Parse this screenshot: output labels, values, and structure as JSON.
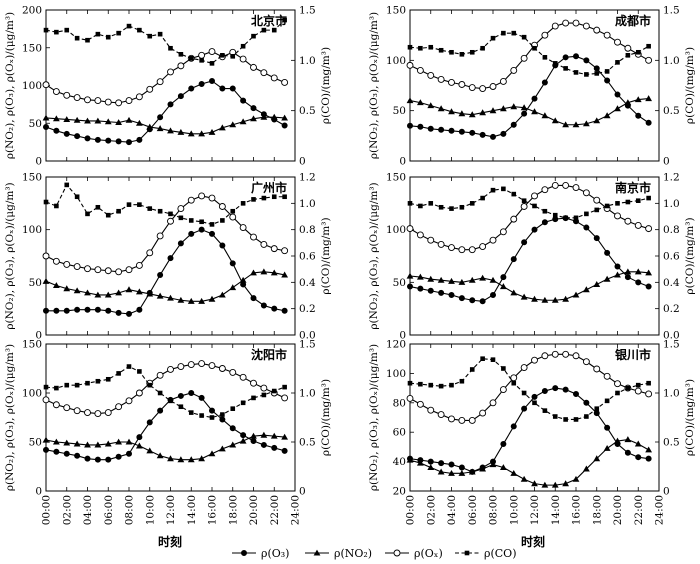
{
  "figure": {
    "xlabel": "时刻",
    "x_ticks": [
      "00:00",
      "02:00",
      "04:00",
      "06:00",
      "08:00",
      "10:00",
      "12:00",
      "14:00",
      "16:00",
      "18:00",
      "20:00",
      "22:00",
      "24:00"
    ],
    "left_axis_label": "ρ(NO₂), ρ(O₃), ρ(Oₓ)/(μg/m³)",
    "right_axis_label": "ρ(CO)/(mg/m³)"
  },
  "legend": [
    {
      "label": "ρ(O₃)",
      "marker": "filled-circle",
      "line": "solid"
    },
    {
      "label": "ρ(NO₂)",
      "marker": "filled-triangle",
      "line": "solid"
    },
    {
      "label": "ρ(Oₓ)",
      "marker": "open-circle",
      "line": "solid"
    },
    {
      "label": "ρ(CO)",
      "marker": "filled-square",
      "line": "dashed"
    }
  ],
  "chart_data": [
    {
      "type": "line",
      "title": "北京市",
      "x": [
        0,
        1,
        2,
        3,
        4,
        5,
        6,
        7,
        8,
        9,
        10,
        11,
        12,
        13,
        14,
        15,
        16,
        17,
        18,
        19,
        20,
        21,
        22,
        23
      ],
      "ylim": [
        0,
        200
      ],
      "yticks": [
        0,
        50,
        100,
        150,
        200
      ],
      "y2lim": [
        0,
        1.5
      ],
      "y2ticks": [
        0,
        0.5,
        1.0,
        1.5
      ],
      "series": [
        {
          "name": "ρ(O₃)",
          "axis": "left",
          "values": [
            45,
            40,
            36,
            33,
            30,
            28,
            27,
            26,
            25,
            28,
            42,
            58,
            75,
            86,
            96,
            102,
            106,
            96,
            96,
            80,
            70,
            62,
            55,
            47
          ]
        },
        {
          "name": "ρ(NO₂)",
          "axis": "left",
          "values": [
            57,
            56,
            55,
            54,
            53,
            53,
            52,
            51,
            54,
            50,
            45,
            43,
            40,
            38,
            36,
            36,
            38,
            44,
            48,
            52,
            56,
            58,
            58,
            57
          ]
        },
        {
          "name": "ρ(Oₓ)",
          "axis": "left",
          "values": [
            101,
            92,
            87,
            84,
            81,
            80,
            78,
            77,
            80,
            85,
            95,
            105,
            118,
            126,
            136,
            140,
            145,
            138,
            144,
            135,
            124,
            117,
            110,
            104
          ]
        },
        {
          "name": "ρ(CO)",
          "axis": "right",
          "values": [
            1.3,
            1.28,
            1.3,
            1.22,
            1.2,
            1.26,
            1.23,
            1.27,
            1.34,
            1.3,
            1.24,
            1.26,
            1.12,
            1.06,
            1.02,
            1.0,
            0.97,
            1.05,
            1.04,
            1.14,
            1.24,
            1.3,
            1.3,
            1.4
          ]
        }
      ]
    },
    {
      "type": "line",
      "title": "成都市",
      "x": [
        0,
        1,
        2,
        3,
        4,
        5,
        6,
        7,
        8,
        9,
        10,
        11,
        12,
        13,
        14,
        15,
        16,
        17,
        18,
        19,
        20,
        21,
        22,
        23
      ],
      "ylim": [
        0,
        150
      ],
      "yticks": [
        0,
        50,
        100,
        150
      ],
      "y2lim": [
        0,
        1.5
      ],
      "y2ticks": [
        0,
        0.5,
        1.0,
        1.5
      ],
      "series": [
        {
          "name": "ρ(O₃)",
          "axis": "left",
          "values": [
            35,
            34,
            32,
            31,
            30,
            29,
            28,
            26,
            24,
            27,
            36,
            47,
            62,
            78,
            95,
            103,
            104,
            100,
            92,
            80,
            66,
            55,
            45,
            38
          ]
        },
        {
          "name": "ρ(NO₂)",
          "axis": "left",
          "values": [
            60,
            58,
            55,
            52,
            49,
            47,
            46,
            48,
            50,
            52,
            54,
            53,
            49,
            45,
            40,
            36,
            36,
            37,
            40,
            45,
            52,
            58,
            61,
            62
          ]
        },
        {
          "name": "ρ(Oₓ)",
          "axis": "left",
          "values": [
            95,
            90,
            85,
            81,
            78,
            76,
            73,
            72,
            74,
            79,
            90,
            102,
            115,
            125,
            134,
            137,
            137,
            134,
            130,
            125,
            118,
            112,
            106,
            100
          ]
        },
        {
          "name": "ρ(CO)",
          "axis": "right",
          "values": [
            1.13,
            1.12,
            1.13,
            1.1,
            1.08,
            1.06,
            1.08,
            1.12,
            1.22,
            1.27,
            1.27,
            1.23,
            1.12,
            1.03,
            0.97,
            0.92,
            0.88,
            0.86,
            0.87,
            0.89,
            0.98,
            1.05,
            1.08,
            1.14
          ]
        }
      ]
    },
    {
      "type": "line",
      "title": "广州市",
      "x": [
        0,
        1,
        2,
        3,
        4,
        5,
        6,
        7,
        8,
        9,
        10,
        11,
        12,
        13,
        14,
        15,
        16,
        17,
        18,
        19,
        20,
        21,
        22,
        23
      ],
      "ylim": [
        0,
        150
      ],
      "yticks": [
        0,
        50,
        100,
        150
      ],
      "y2lim": [
        0,
        1.2
      ],
      "y2ticks": [
        0,
        0.2,
        0.4,
        0.6,
        0.8,
        1.0,
        1.2
      ],
      "series": [
        {
          "name": "ρ(O₃)",
          "axis": "left",
          "values": [
            23,
            23,
            23,
            24,
            24,
            24,
            23,
            21,
            20,
            24,
            40,
            57,
            73,
            87,
            96,
            100,
            96,
            85,
            68,
            48,
            35,
            28,
            25,
            23
          ]
        },
        {
          "name": "ρ(NO₂)",
          "axis": "left",
          "values": [
            51,
            47,
            44,
            42,
            40,
            38,
            38,
            40,
            43,
            41,
            39,
            37,
            35,
            33,
            32,
            32,
            34,
            38,
            45,
            52,
            59,
            60,
            59,
            57
          ]
        },
        {
          "name": "ρ(Oₓ)",
          "axis": "left",
          "values": [
            75,
            70,
            67,
            65,
            63,
            62,
            61,
            60,
            62,
            66,
            78,
            94,
            108,
            120,
            128,
            132,
            130,
            122,
            112,
            102,
            93,
            86,
            82,
            80
          ]
        },
        {
          "name": "ρ(CO)",
          "axis": "right",
          "values": [
            1.01,
            0.98,
            1.14,
            1.05,
            0.92,
            0.97,
            0.91,
            0.94,
            0.99,
            0.99,
            0.96,
            0.94,
            0.92,
            0.89,
            0.87,
            0.86,
            0.84,
            0.87,
            0.94,
            1.0,
            1.03,
            1.04,
            1.05,
            1.05
          ]
        }
      ]
    },
    {
      "type": "line",
      "title": "南京市",
      "x": [
        0,
        1,
        2,
        3,
        4,
        5,
        6,
        7,
        8,
        9,
        10,
        11,
        12,
        13,
        14,
        15,
        16,
        17,
        18,
        19,
        20,
        21,
        22,
        23
      ],
      "ylim": [
        0,
        150
      ],
      "yticks": [
        0,
        50,
        100,
        150
      ],
      "y2lim": [
        0,
        1.2
      ],
      "y2ticks": [
        0,
        0.2,
        0.4,
        0.6,
        0.8,
        1.0,
        1.2
      ],
      "series": [
        {
          "name": "ρ(O₃)",
          "axis": "left",
          "values": [
            46,
            44,
            42,
            40,
            38,
            35,
            33,
            32,
            38,
            55,
            72,
            88,
            100,
            107,
            110,
            111,
            108,
            102,
            92,
            78,
            65,
            55,
            50,
            46
          ]
        },
        {
          "name": "ρ(NO₂)",
          "axis": "left",
          "values": [
            56,
            55,
            53,
            52,
            51,
            50,
            52,
            54,
            52,
            46,
            40,
            36,
            34,
            33,
            33,
            34,
            38,
            43,
            48,
            53,
            57,
            60,
            60,
            59
          ]
        },
        {
          "name": "ρ(Oₓ)",
          "axis": "left",
          "values": [
            101,
            95,
            90,
            86,
            83,
            81,
            81,
            84,
            90,
            98,
            110,
            122,
            132,
            138,
            142,
            142,
            140,
            135,
            128,
            120,
            113,
            108,
            104,
            101
          ]
        },
        {
          "name": "ρ(CO)",
          "axis": "right",
          "values": [
            1.0,
            0.98,
            1.0,
            0.97,
            0.96,
            0.97,
            1.0,
            1.04,
            1.1,
            1.11,
            1.07,
            1.02,
            0.98,
            0.94,
            0.91,
            0.89,
            0.89,
            0.92,
            0.95,
            0.98,
            1.0,
            1.01,
            1.02,
            1.04
          ]
        }
      ]
    },
    {
      "type": "line",
      "title": "沈阳市",
      "x": [
        0,
        1,
        2,
        3,
        4,
        5,
        6,
        7,
        8,
        9,
        10,
        11,
        12,
        13,
        14,
        15,
        16,
        17,
        18,
        19,
        20,
        21,
        22,
        23
      ],
      "ylim": [
        0,
        150
      ],
      "yticks": [
        0,
        50,
        100,
        150
      ],
      "y2lim": [
        0,
        1.5
      ],
      "y2ticks": [
        0,
        0.5,
        1.0,
        1.5
      ],
      "series": [
        {
          "name": "ρ(O₃)",
          "axis": "left",
          "values": [
            42,
            40,
            38,
            36,
            33,
            32,
            32,
            35,
            38,
            55,
            70,
            82,
            93,
            97,
            100,
            95,
            82,
            73,
            64,
            57,
            51,
            47,
            44,
            41
          ]
        },
        {
          "name": "ρ(NO₂)",
          "axis": "left",
          "values": [
            52,
            50,
            49,
            48,
            47,
            47,
            48,
            50,
            50,
            46,
            41,
            36,
            33,
            32,
            32,
            33,
            38,
            43,
            47,
            51,
            56,
            57,
            56,
            55
          ]
        },
        {
          "name": "ρ(Oₓ)",
          "axis": "left",
          "values": [
            93,
            88,
            85,
            82,
            80,
            79,
            80,
            86,
            92,
            100,
            110,
            118,
            124,
            127,
            129,
            130,
            128,
            125,
            121,
            116,
            110,
            105,
            100,
            95
          ]
        },
        {
          "name": "ρ(CO)",
          "axis": "right",
          "values": [
            1.06,
            1.05,
            1.08,
            1.08,
            1.1,
            1.12,
            1.14,
            1.2,
            1.27,
            1.22,
            1.08,
            1.0,
            0.92,
            0.86,
            0.8,
            0.77,
            0.75,
            0.78,
            0.84,
            0.9,
            0.95,
            0.98,
            1.02,
            1.06
          ]
        }
      ]
    },
    {
      "type": "line",
      "title": "银川市",
      "x": [
        0,
        1,
        2,
        3,
        4,
        5,
        6,
        7,
        8,
        9,
        10,
        11,
        12,
        13,
        14,
        15,
        16,
        17,
        18,
        19,
        20,
        21,
        22,
        23
      ],
      "ylim": [
        20,
        120
      ],
      "yticks": [
        20,
        40,
        60,
        80,
        100,
        120
      ],
      "y2lim": [
        0,
        1.5
      ],
      "y2ticks": [
        0,
        0.5,
        1.0,
        1.5
      ],
      "series": [
        {
          "name": "ρ(O₃)",
          "axis": "left",
          "values": [
            42,
            41,
            40,
            39,
            38,
            36,
            33,
            36,
            40,
            52,
            64,
            76,
            84,
            88,
            90,
            89,
            86,
            80,
            73,
            63,
            52,
            46,
            43,
            42
          ]
        },
        {
          "name": "ρ(NO₂)",
          "axis": "left",
          "values": [
            41,
            39,
            36,
            33,
            32,
            32,
            33,
            35,
            38,
            36,
            32,
            28,
            25,
            24,
            24,
            25,
            28,
            35,
            42,
            49,
            54,
            55,
            52,
            48
          ]
        },
        {
          "name": "ρ(Oₓ)",
          "axis": "left",
          "values": [
            83,
            79,
            75,
            72,
            69,
            68,
            68,
            73,
            80,
            89,
            97,
            104,
            109,
            112,
            113,
            113,
            112,
            108,
            103,
            98,
            93,
            90,
            88,
            86
          ]
        },
        {
          "name": "ρ(CO)",
          "axis": "right",
          "values": [
            1.1,
            1.09,
            1.08,
            1.07,
            1.08,
            1.12,
            1.24,
            1.35,
            1.34,
            1.25,
            1.1,
            1.0,
            0.9,
            0.82,
            0.76,
            0.73,
            0.73,
            0.76,
            0.84,
            0.92,
            1.0,
            1.05,
            1.08,
            1.1
          ]
        }
      ]
    }
  ]
}
